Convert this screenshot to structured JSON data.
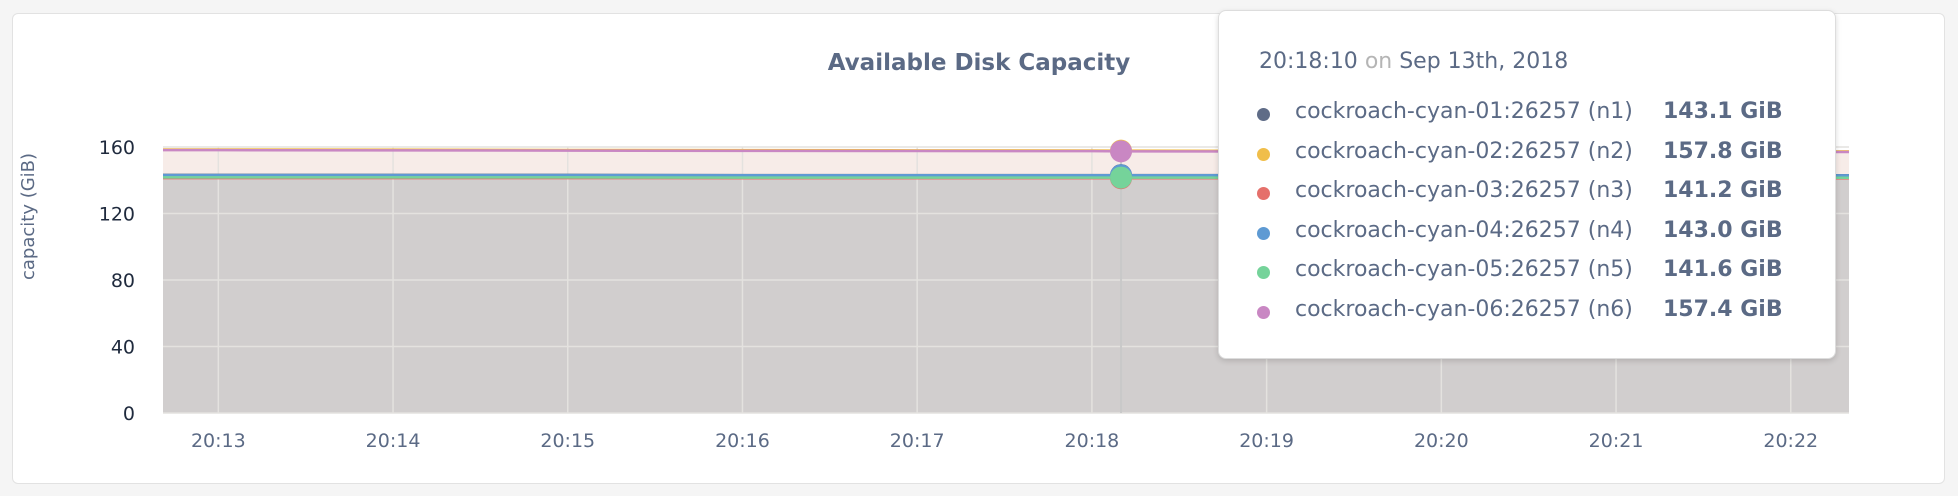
{
  "chart_data": {
    "type": "area",
    "title": "Available Disk Capacity",
    "ylabel": "capacity (GiB)",
    "xlabel": "",
    "ylim": [
      0,
      160
    ],
    "yticks": [
      "0",
      "40",
      "80",
      "120",
      "160"
    ],
    "yticks_values": [
      0,
      40,
      80,
      120,
      160
    ],
    "xlim": [
      "20:12:41",
      "20:22:20"
    ],
    "xticks": [
      "20:13",
      "20:14",
      "20:15",
      "20:16",
      "20:17",
      "20:18",
      "20:19",
      "20:20",
      "20:21",
      "20:22"
    ],
    "grid": true,
    "x": [
      "20:12:41",
      "20:13",
      "20:14",
      "20:15",
      "20:16",
      "20:17",
      "20:18",
      "20:18:10",
      "20:19",
      "20:20",
      "20:21",
      "20:22",
      "20:22:20"
    ],
    "series": [
      {
        "name": "cockroach-cyan-01:26257 (n1)",
        "color": "#5f6c87",
        "values": [
          143.2,
          143.2,
          143.2,
          143.2,
          143.1,
          143.1,
          143.1,
          143.1,
          143.1,
          143.0,
          143.0,
          143.0,
          143.0
        ]
      },
      {
        "name": "cockroach-cyan-02:26257 (n2)",
        "color": "#f0be4a",
        "values": [
          158.5,
          158.5,
          158.4,
          158.2,
          158.1,
          158.0,
          157.9,
          157.8,
          157.7,
          157.6,
          157.5,
          157.4,
          157.4
        ]
      },
      {
        "name": "cockroach-cyan-03:26257 (n3)",
        "color": "#e5706b",
        "values": [
          141.3,
          141.3,
          141.3,
          141.3,
          141.2,
          141.2,
          141.2,
          141.2,
          141.2,
          141.1,
          141.1,
          141.1,
          141.1
        ]
      },
      {
        "name": "cockroach-cyan-04:26257 (n4)",
        "color": "#5e9ad3",
        "values": [
          143.1,
          143.1,
          143.1,
          143.1,
          143.0,
          143.0,
          143.0,
          143.0,
          143.0,
          142.9,
          142.9,
          142.9,
          142.9
        ]
      },
      {
        "name": "cockroach-cyan-05:26257 (n5)",
        "color": "#75d39a",
        "values": [
          141.7,
          141.7,
          141.7,
          141.7,
          141.6,
          141.6,
          141.6,
          141.6,
          141.6,
          141.5,
          141.5,
          141.5,
          141.5
        ]
      },
      {
        "name": "cockroach-cyan-06:26257 (n6)",
        "color": "#c987c3",
        "values": [
          158.1,
          158.1,
          158.0,
          157.8,
          157.7,
          157.6,
          157.5,
          157.4,
          157.3,
          157.2,
          157.1,
          157.0,
          157.0
        ]
      }
    ],
    "hover_index": 7
  },
  "tooltip": {
    "time": "20:18:10",
    "on": "on",
    "date": "Sep 13th, 2018",
    "rows": [
      {
        "label": "cockroach-cyan-01:26257 (n1)",
        "value": "143.1 GiB",
        "color": "#5f6c87"
      },
      {
        "label": "cockroach-cyan-02:26257 (n2)",
        "value": "157.8 GiB",
        "color": "#f0be4a"
      },
      {
        "label": "cockroach-cyan-03:26257 (n3)",
        "value": "141.2 GiB",
        "color": "#e5706b"
      },
      {
        "label": "cockroach-cyan-04:26257 (n4)",
        "value": "143.0 GiB",
        "color": "#5e9ad3"
      },
      {
        "label": "cockroach-cyan-05:26257 (n5)",
        "value": "141.6 GiB",
        "color": "#75d39a"
      },
      {
        "label": "cockroach-cyan-06:26257 (n6)",
        "value": "157.4 GiB",
        "color": "#c987c3"
      }
    ]
  }
}
